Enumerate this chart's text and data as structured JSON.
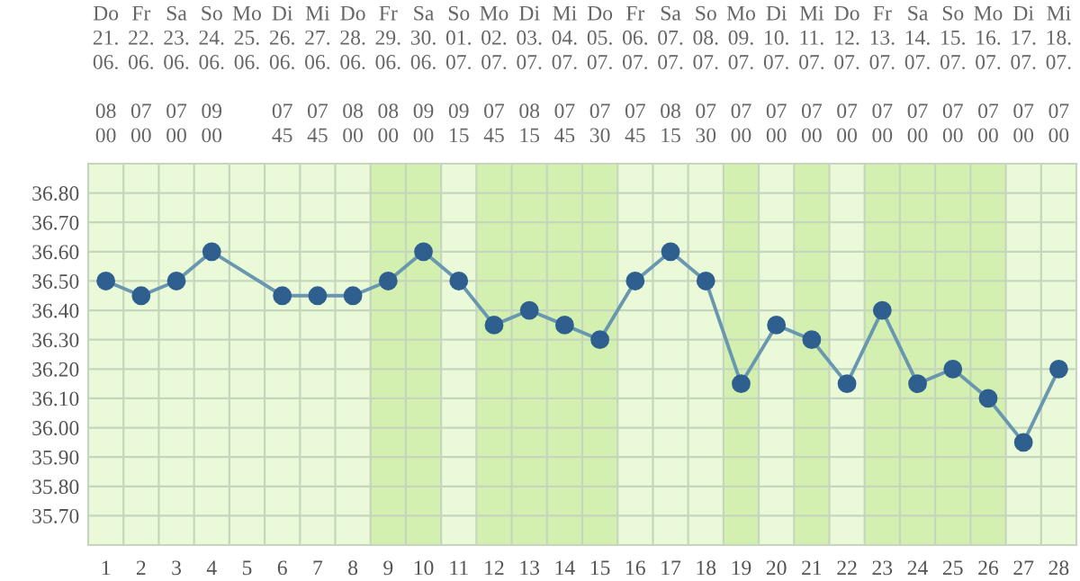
{
  "chart_data": {
    "type": "line",
    "categories": [
      "1",
      "2",
      "3",
      "4",
      "5",
      "6",
      "7",
      "8",
      "9",
      "10",
      "11",
      "12",
      "13",
      "14",
      "15",
      "16",
      "17",
      "18",
      "19",
      "20",
      "21",
      "22",
      "23",
      "24",
      "25",
      "26",
      "27",
      "28"
    ],
    "series": [
      {
        "color": "#6a97b0",
        "values": [
          36.5,
          36.45,
          36.5,
          36.6,
          null,
          36.45,
          36.45,
          36.45,
          36.5,
          36.6,
          36.5,
          36.35,
          36.4,
          36.35,
          36.3,
          36.5,
          36.6,
          36.5,
          36.15,
          36.35,
          36.3,
          36.15,
          36.4,
          36.15,
          36.2,
          36.1,
          35.95,
          36.2
        ]
      }
    ],
    "marker": "circle",
    "line_style": "solid",
    "grid": true,
    "ylim": [
      35.6,
      36.9
    ],
    "yticks": [
      {
        "value": 35.6,
        "label": null
      },
      {
        "value": 35.7,
        "label": "35.70"
      },
      {
        "value": 35.8,
        "label": "35.80"
      },
      {
        "value": 35.9,
        "label": "35.90"
      },
      {
        "value": 36.0,
        "label": "36.00"
      },
      {
        "value": 36.1,
        "label": "36.10"
      },
      {
        "value": 36.2,
        "label": "36.20"
      },
      {
        "value": 36.3,
        "label": "36.30"
      },
      {
        "value": 36.4,
        "label": "36.40"
      },
      {
        "value": 36.5,
        "label": "36.50"
      },
      {
        "value": 36.6,
        "label": "36.60"
      },
      {
        "value": 36.7,
        "label": "36.70"
      },
      {
        "value": 36.8,
        "label": "36.80"
      },
      {
        "value": 36.9,
        "label": null
      }
    ],
    "bands": [
      {
        "axis": "x",
        "from": "9",
        "to": "10",
        "color": "#d3f0b0"
      },
      {
        "axis": "x",
        "from": "12",
        "to": "15",
        "color": "#d3f0b0"
      },
      {
        "axis": "x",
        "from": "19",
        "to": "19",
        "color": "#d3f0b0"
      },
      {
        "axis": "x",
        "from": "21",
        "to": "21",
        "color": "#d3f0b0"
      },
      {
        "axis": "x",
        "from": "23",
        "to": "26",
        "color": "#d3f0b0"
      }
    ],
    "annotations": [
      "Do\n21.\n06.\n\n08\n00",
      "Fr\n22.\n06.\n\n07\n00",
      "Sa\n23.\n06.\n\n07\n00",
      "So\n24.\n06.\n\n09\n00",
      "Mo\n25.\n06.",
      "Di\n26.\n06.\n\n07\n45",
      "Mi\n27.\n06.\n\n07\n45",
      "Do\n28.\n06.\n\n08\n00",
      "Fr\n29.\n06.\n\n08\n00",
      "Sa\n30.\n06.\n\n09\n00",
      "So\n01.\n07.\n\n09\n15",
      "Mo\n02.\n07.\n\n07\n45",
      "Di\n03.\n07.\n\n08\n15",
      "Mi\n04.\n07.\n\n07\n45",
      "Do\n05.\n07.\n\n07\n30",
      "Fr\n06.\n07.\n\n07\n45",
      "Sa\n07.\n07.\n\n08\n15",
      "So\n08.\n07.\n\n07\n30",
      "Mo\n09.\n07.\n\n07\n00",
      "Di\n10.\n07.\n\n07\n00",
      "Mi\n11.\n07.\n\n07\n00",
      "Do\n12.\n07.\n\n07\n00",
      "Fr\n13.\n07.\n\n07\n00",
      "Sa\n14.\n07.\n\n07\n00",
      "So\n15.\n07.\n\n07\n00",
      "Mo\n16.\n07.\n\n07\n00",
      "Di\n17.\n07.\n\n07\n00",
      "Mi\n18.\n07.\n\n07\n00"
    ]
  }
}
